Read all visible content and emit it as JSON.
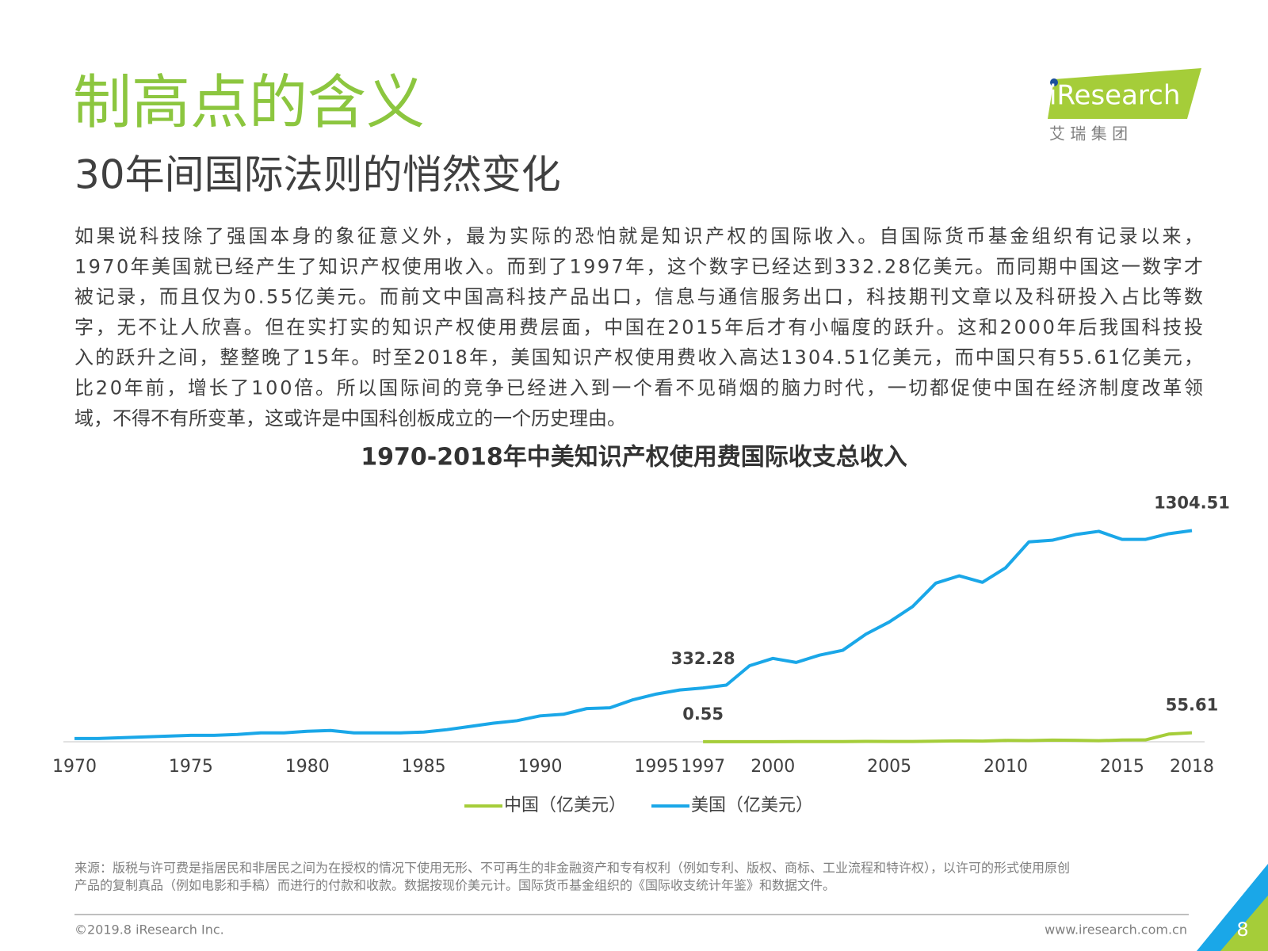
{
  "header": {
    "title": "制高点的含义",
    "subtitle": "30年间国际法则的悄然变化"
  },
  "logo": {
    "name": "iResearch",
    "cn": "艾 瑞 集 团"
  },
  "paragraph": [
    "如果说科技除了强国本身的象征意义外，最为实际的恐怕就是知识产权的国际收入。自国际货币基金组织有记录以来，",
    "1970年美国就已经产生了知识产权使用收入。而到了1997年，这个数字已经达到332.28亿美元。而同期中国这一数字才",
    "被记录，而且仅为0.55亿美元。而前文中国高科技产品出口，信息与通信服务出口，科技期刊文章以及科研投入占比等数",
    "字，无不让人欣喜。但在实打实的知识产权使用费层面，中国在2015年后才有小幅度的跃升。这和2000年后我国科技投",
    "入的跃升之间，整整晚了15年。时至2018年，美国知识产权使用费收入高达1304.51亿美元，而中国只有55.61亿美元，",
    "比20年前，增长了100倍。所以国际间的竞争已经进入到一个看不见硝烟的脑力时代，一切都促使中国在经济制度改革领",
    "域，不得不有所变革，这或许是中国科创板成立的一个历史理由。"
  ],
  "chart_data": {
    "type": "line",
    "title": "1970-2018年中美知识产权使用费国际收支总收入",
    "x": [
      1970,
      1971,
      1972,
      1973,
      1974,
      1975,
      1976,
      1977,
      1978,
      1979,
      1980,
      1981,
      1982,
      1983,
      1984,
      1985,
      1986,
      1987,
      1988,
      1989,
      1990,
      1991,
      1992,
      1993,
      1994,
      1995,
      1996,
      1997,
      1998,
      1999,
      2000,
      2001,
      2002,
      2003,
      2004,
      2005,
      2006,
      2007,
      2008,
      2009,
      2010,
      2011,
      2012,
      2013,
      2014,
      2015,
      2016,
      2017,
      2018
    ],
    "series": [
      {
        "name": "中国（亿美元）",
        "color": "#a5cd39",
        "values": [
          null,
          null,
          null,
          null,
          null,
          null,
          null,
          null,
          null,
          null,
          null,
          null,
          null,
          null,
          null,
          null,
          null,
          null,
          null,
          null,
          null,
          null,
          null,
          null,
          null,
          null,
          null,
          0.55,
          0.6,
          0.8,
          0.8,
          1.1,
          1.3,
          1.1,
          2.4,
          1.6,
          2.0,
          3.4,
          5.7,
          4.3,
          8.3,
          7.4,
          10.4,
          8.9,
          6.8,
          10.8,
          11.6,
          47.7,
          55.61
        ]
      },
      {
        "name": "美国（亿美元）",
        "color": "#1aa7e8",
        "values": [
          20,
          20,
          25,
          30,
          35,
          40,
          40,
          45,
          55,
          55,
          65,
          70,
          55,
          55,
          55,
          60,
          75,
          95,
          115,
          130,
          160,
          170,
          205,
          210,
          260,
          295,
          320,
          332.28,
          350,
          470,
          515,
          490,
          535,
          565,
          665,
          740,
          835,
          980,
          1025,
          985,
          1075,
          1235,
          1245,
          1280,
          1300,
          1250,
          1250,
          1285,
          1304.51
        ]
      }
    ],
    "xlim": [
      1970,
      2018
    ],
    "xticks": [
      1970,
      1975,
      1980,
      1985,
      1990,
      1995,
      1997,
      2000,
      2005,
      2010,
      2015,
      2018
    ],
    "ylim": [
      0,
      1400
    ],
    "legend": "bottom"
  },
  "source": [
    "来源：版税与许可费是指居民和非居民之间为在授权的情况下使用无形、不可再生的非金融资产和专有权利（例如专利、版权、商标、工业流程和特许权），以许可的形式使用原创",
    "产品的复制真品（例如电影和手稿）而进行的付款和收款。数据按现价美元计。国际货币基金组织的《国际收支统计年鉴》和数据文件。"
  ],
  "footer": {
    "copyright": "©2019.8 iResearch Inc.",
    "url": "www.iresearch.com.cn",
    "page": "8"
  }
}
